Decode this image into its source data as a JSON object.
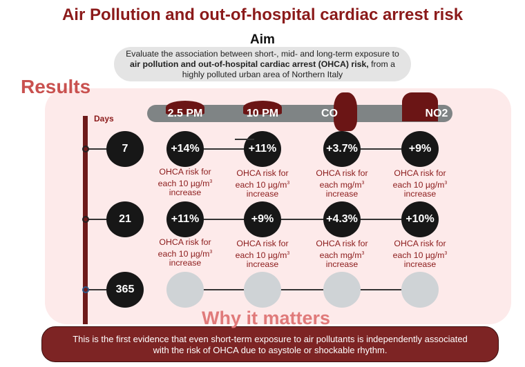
{
  "title": "Air Pollution and out-of-hospital cardiac arrest risk",
  "aim": {
    "heading": "Aim",
    "line1": "Evaluate the association between short-, mid- and long-term exposure to",
    "line2_bold": "air pollution and out-of-hospital cardiac arrest (OHCA) risk,",
    "line2_rest": "  from a",
    "line3": "highly polluted urban area of Northern Italy"
  },
  "results": {
    "heading": "Results",
    "days_label": "Days",
    "pollutants": [
      "2.5 PM",
      "10 PM",
      "CO",
      "NO2"
    ],
    "rows": [
      {
        "days": "7",
        "values": [
          "+14%",
          "+11%",
          "+3.7%",
          "+9%"
        ]
      },
      {
        "days": "21",
        "values": [
          "+11%",
          "+9%",
          "+4.3%",
          "+10%"
        ]
      },
      {
        "days": "365",
        "values": []
      }
    ],
    "desc": {
      "l1": "OHCA risk for",
      "l2_10": "each 10 µg/m",
      "l2_co": "each  mg/m",
      "sup": "3",
      "l3": "increase"
    }
  },
  "why": {
    "heading": "Why it matters",
    "text1": "This is the first evidence that even short-term exposure to air pollutants is independently associated",
    "text2": "with the risk  of OHCA due to asystole or shockable rhythm."
  },
  "colors": {
    "accent": "#8b1a1a",
    "panel": "#fdeaea",
    "bottom": "#7d2424"
  }
}
